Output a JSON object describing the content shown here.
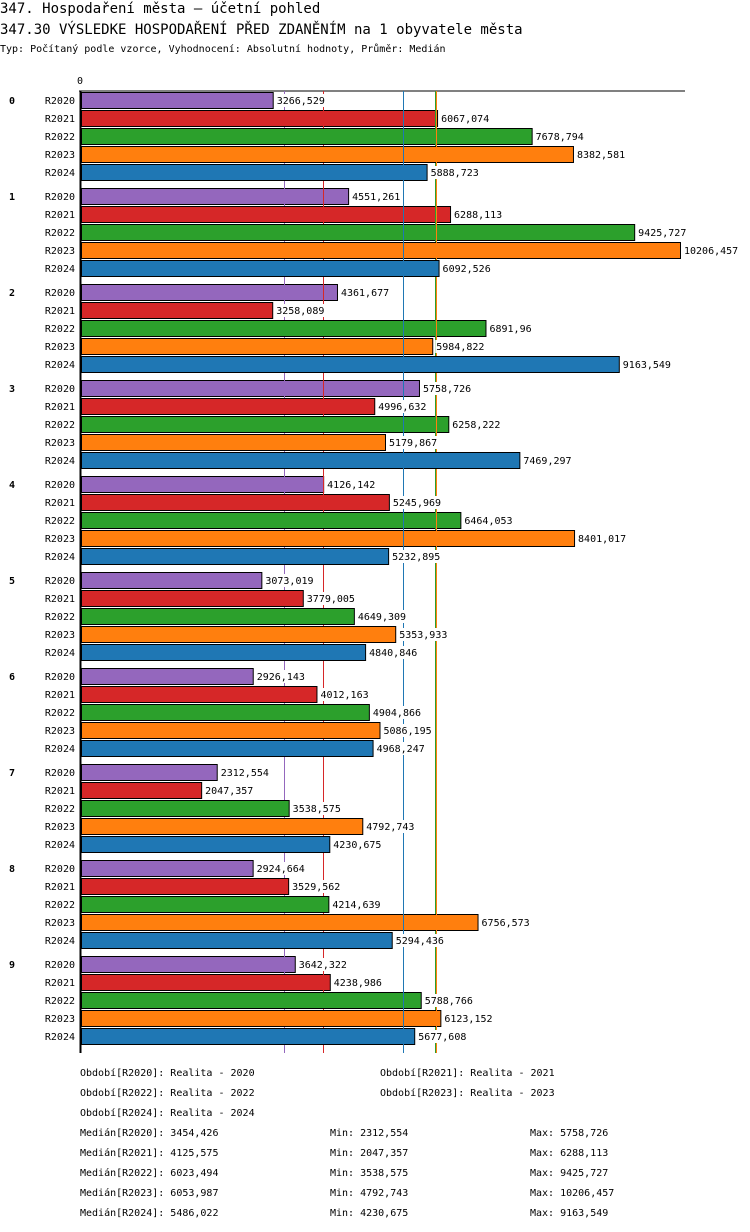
{
  "header": {
    "title": "347. Hospodaření města – účetní pohled",
    "subtitle": "347.30 VÝSLEDKE HOSPODAŘENÍ PŘED ZDANĚNÍM na 1 obyvatele města",
    "meta": "Typ: Počítaný podle vzorce, Vyhodnocení: Absolutní hodnoty, Průměr: Medián"
  },
  "chart_data": {
    "type": "bar",
    "orientation": "horizontal",
    "title": "347.30 VÝSLEDKE HOSPODAŘENÍ PŘED ZDANĚNÍM na 1 obyvatele města",
    "xlabel": "",
    "ylabel": "",
    "x_tick_labels": [
      "0"
    ],
    "xlim": [
      0,
      10206.457
    ],
    "grid": false,
    "categories": [
      "0",
      "1",
      "2",
      "3",
      "4",
      "5",
      "6",
      "7",
      "8",
      "9"
    ],
    "series": [
      {
        "name": "R2020",
        "color": "#9467bd",
        "values": [
          3266.529,
          4551.261,
          4361.677,
          5758.726,
          4126.142,
          3073.019,
          2926.143,
          2312.554,
          2924.664,
          3642.322
        ]
      },
      {
        "name": "R2021",
        "color": "#d62728",
        "values": [
          6067.074,
          6288.113,
          3258.089,
          4996.632,
          5245.969,
          3779.005,
          4012.163,
          2047.357,
          3529.562,
          4238.986
        ]
      },
      {
        "name": "R2022",
        "color": "#2ca02c",
        "values": [
          7678.794,
          9425.727,
          6891.96,
          6258.222,
          6464.053,
          4649.309,
          4904.866,
          3538.575,
          4214.639,
          5788.766
        ]
      },
      {
        "name": "R2023",
        "color": "#ff7f0e",
        "values": [
          8382.581,
          10206.457,
          5984.822,
          5179.867,
          8401.017,
          5353.933,
          5086.195,
          4792.743,
          6756.573,
          6123.152
        ]
      },
      {
        "name": "R2024",
        "color": "#1f77b4",
        "values": [
          5888.723,
          6092.526,
          9163.549,
          7469.297,
          5232.895,
          4840.846,
          4968.247,
          4230.675,
          5294.436,
          5677.608
        ]
      }
    ],
    "value_labels": [
      [
        "3266,529",
        "6067,074",
        "7678,794",
        "8382,581",
        "5888,723"
      ],
      [
        "4551,261",
        "6288,113",
        "9425,727",
        "10206,457",
        "6092,526"
      ],
      [
        "4361,677",
        "3258,089",
        "6891,96",
        "5984,822",
        "9163,549"
      ],
      [
        "5758,726",
        "4996,632",
        "6258,222",
        "5179,867",
        "7469,297"
      ],
      [
        "4126,142",
        "5245,969",
        "6464,053",
        "8401,017",
        "5232,895"
      ],
      [
        "3073,019",
        "3779,005",
        "4649,309",
        "5353,933",
        "4840,846"
      ],
      [
        "2926,143",
        "4012,163",
        "4904,866",
        "5086,195",
        "4968,247"
      ],
      [
        "2312,554",
        "2047,357",
        "3538,575",
        "4792,743",
        "4230,675"
      ],
      [
        "2924,664",
        "3529,562",
        "4214,639",
        "6756,573",
        "5294,436"
      ],
      [
        "3642,322",
        "4238,986",
        "5788,766",
        "6123,152",
        "5677,608"
      ]
    ],
    "medians": [
      {
        "series": "R2020",
        "value": 3454.426,
        "color": "#9467bd"
      },
      {
        "series": "R2021",
        "value": 4125.575,
        "color": "#d62728"
      },
      {
        "series": "R2022",
        "value": 6023.494,
        "color": "#2ca02c"
      },
      {
        "series": "R2023",
        "value": 6053.987,
        "color": "#ff7f0e"
      },
      {
        "series": "R2024",
        "value": 5486.022,
        "color": "#1f77b4"
      }
    ]
  },
  "legend": {
    "periods": [
      "Období[R2020]: Realita - 2020",
      "Období[R2021]: Realita - 2021",
      "Období[R2022]: Realita - 2022",
      "Období[R2023]: Realita - 2023",
      "Období[R2024]: Realita - 2024"
    ],
    "stats": [
      {
        "median": "Medián[R2020]: 3454,426",
        "min": "Min: 2312,554",
        "max": "Max: 5758,726"
      },
      {
        "median": "Medián[R2021]: 4125,575",
        "min": "Min: 2047,357",
        "max": "Max: 6288,113"
      },
      {
        "median": "Medián[R2022]: 6023,494",
        "min": "Min: 3538,575",
        "max": "Max: 9425,727"
      },
      {
        "median": "Medián[R2023]: 6053,987",
        "min": "Min: 4792,743",
        "max": "Max: 10206,457"
      },
      {
        "median": "Medián[R2024]: 5486,022",
        "min": "Min: 4230,675",
        "max": "Max: 9163,549"
      }
    ]
  }
}
